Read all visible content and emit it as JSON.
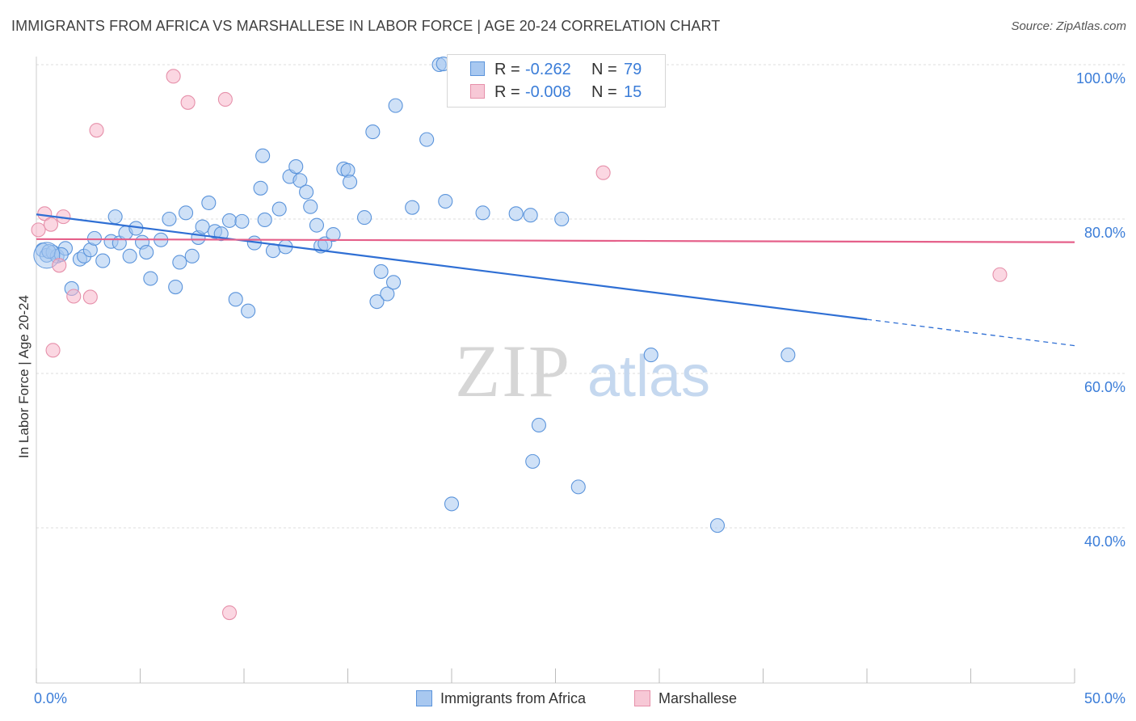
{
  "header": {
    "title": "IMMIGRANTS FROM AFRICA VS MARSHALLESE IN LABOR FORCE | AGE 20-24 CORRELATION CHART",
    "source": "Source: ZipAtlas.com"
  },
  "watermark": {
    "zip": "ZIP",
    "atlas": "atlas"
  },
  "legend": {
    "rows": [
      {
        "r_label": "R =",
        "r_value": "-0.262",
        "n_label": "N =",
        "n_value": "79",
        "color": "#a8c8f0",
        "border": "#5b94db"
      },
      {
        "r_label": "R =",
        "r_value": "-0.008",
        "n_label": "N =",
        "n_value": "15",
        "color": "#f7b7ca",
        "border": "#e690aa"
      }
    ]
  },
  "bottom_legend": [
    {
      "label": "Immigrants from Africa"
    },
    {
      "label": "Marshallese"
    }
  ],
  "chart_data": {
    "type": "scatter",
    "title": "IMMIGRANTS FROM AFRICA VS MARSHALLESE IN LABOR FORCE | AGE 20-24 CORRELATION CHART",
    "xlabel": "",
    "ylabel": "In Labor Force | Age 20-24",
    "xlim": [
      0,
      50
    ],
    "ylim": [
      20,
      103
    ],
    "x_tick_labels": [
      {
        "value": 0,
        "label": "0.0%"
      },
      {
        "value": 50,
        "label": "50.0%"
      }
    ],
    "x_minor_ticks": [
      0,
      5,
      10,
      15,
      20,
      25,
      30,
      35,
      40,
      45,
      50
    ],
    "y_tick_labels": [
      {
        "value": 100,
        "label": "100.0%"
      },
      {
        "value": 80,
        "label": "80.0%"
      },
      {
        "value": 60,
        "label": "60.0%"
      },
      {
        "value": 40,
        "label": "40.0%"
      }
    ],
    "grid": true,
    "series": [
      {
        "name": "Immigrants from Africa",
        "color": "#a8c8f0",
        "stroke": "#5b94db",
        "trend": {
          "x0": 0,
          "y0": 80.6,
          "x1": 40,
          "y1": 67.0,
          "dash_to_x": 50,
          "dash_to_y": 63.6,
          "color": "#2f6fd4"
        },
        "points": [
          [
            0.3,
            76.0
          ],
          [
            0.5,
            75.3
          ],
          [
            0.8,
            75.7
          ],
          [
            1.0,
            75.2
          ],
          [
            1.4,
            76.2
          ],
          [
            1.7,
            71.0
          ],
          [
            2.1,
            74.8
          ],
          [
            2.3,
            75.2
          ],
          [
            2.6,
            76.0
          ],
          [
            2.8,
            77.5
          ],
          [
            3.2,
            74.6
          ],
          [
            3.6,
            77.1
          ],
          [
            3.8,
            80.3
          ],
          [
            4.0,
            76.9
          ],
          [
            4.3,
            78.2
          ],
          [
            4.5,
            75.2
          ],
          [
            4.8,
            78.8
          ],
          [
            5.1,
            77.0
          ],
          [
            5.3,
            75.7
          ],
          [
            5.5,
            72.3
          ],
          [
            6.0,
            77.3
          ],
          [
            6.4,
            80.0
          ],
          [
            6.7,
            71.2
          ],
          [
            6.9,
            74.4
          ],
          [
            7.2,
            80.8
          ],
          [
            7.5,
            75.2
          ],
          [
            7.8,
            77.6
          ],
          [
            8.0,
            79.0
          ],
          [
            8.3,
            82.1
          ],
          [
            8.6,
            78.4
          ],
          [
            8.9,
            78.1
          ],
          [
            9.3,
            79.8
          ],
          [
            9.6,
            69.6
          ],
          [
            9.9,
            79.7
          ],
          [
            10.2,
            68.1
          ],
          [
            10.5,
            76.9
          ],
          [
            10.8,
            84.0
          ],
          [
            10.9,
            88.2
          ],
          [
            11.0,
            79.9
          ],
          [
            11.4,
            75.9
          ],
          [
            11.7,
            81.3
          ],
          [
            12.0,
            76.4
          ],
          [
            12.2,
            85.5
          ],
          [
            12.5,
            86.8
          ],
          [
            12.7,
            85.0
          ],
          [
            13.0,
            83.5
          ],
          [
            13.2,
            81.6
          ],
          [
            13.5,
            79.2
          ],
          [
            13.7,
            76.5
          ],
          [
            13.9,
            76.8
          ],
          [
            14.3,
            78.0
          ],
          [
            14.8,
            86.5
          ],
          [
            15.0,
            86.3
          ],
          [
            15.1,
            84.8
          ],
          [
            15.8,
            80.2
          ],
          [
            16.2,
            91.3
          ],
          [
            16.4,
            69.3
          ],
          [
            16.6,
            73.2
          ],
          [
            16.9,
            70.3
          ],
          [
            17.2,
            71.8
          ],
          [
            17.3,
            94.7
          ],
          [
            18.1,
            81.5
          ],
          [
            18.8,
            90.3
          ],
          [
            19.4,
            100.0
          ],
          [
            19.6,
            100.1
          ],
          [
            19.7,
            82.3
          ],
          [
            20.0,
            43.1
          ],
          [
            21.5,
            80.8
          ],
          [
            23.1,
            80.7
          ],
          [
            23.8,
            80.5
          ],
          [
            23.9,
            48.6
          ],
          [
            24.2,
            53.3
          ],
          [
            25.3,
            80.0
          ],
          [
            26.1,
            45.3
          ],
          [
            29.6,
            62.4
          ],
          [
            32.8,
            40.3
          ],
          [
            36.2,
            62.4
          ],
          [
            0.6,
            75.8
          ],
          [
            1.2,
            75.4
          ]
        ]
      },
      {
        "name": "Marshallese",
        "color": "#f7b7ca",
        "stroke": "#e690aa",
        "trend": {
          "x0": 0,
          "y0": 77.4,
          "x1": 50,
          "y1": 77.0,
          "color": "#e5608a"
        },
        "points": [
          [
            0.1,
            78.6
          ],
          [
            0.4,
            80.7
          ],
          [
            0.7,
            79.3
          ],
          [
            0.8,
            63.0
          ],
          [
            1.1,
            74.0
          ],
          [
            1.3,
            80.3
          ],
          [
            1.8,
            70.0
          ],
          [
            2.6,
            69.9
          ],
          [
            2.9,
            91.5
          ],
          [
            6.6,
            98.5
          ],
          [
            7.3,
            95.1
          ],
          [
            9.1,
            95.5
          ],
          [
            9.3,
            29.0
          ],
          [
            27.3,
            86.0
          ],
          [
            46.4,
            72.8
          ]
        ]
      }
    ]
  }
}
